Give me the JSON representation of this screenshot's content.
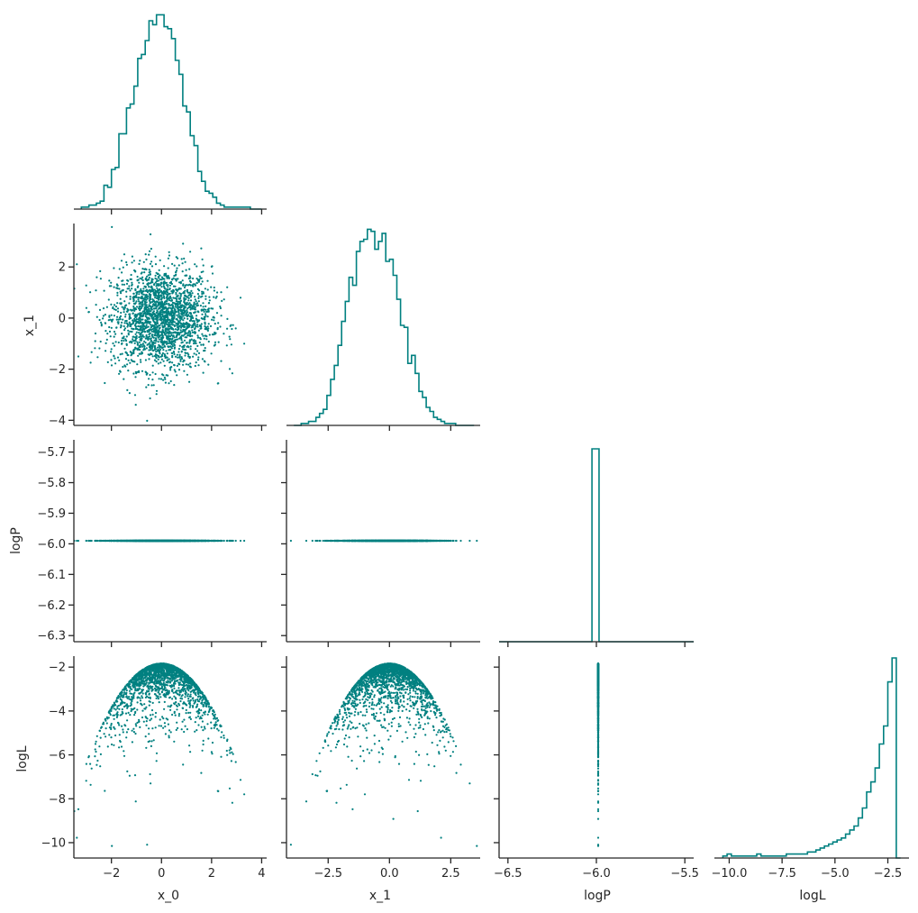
{
  "chart_data": {
    "type": "corner",
    "title": "",
    "variables": [
      "x_0",
      "x_1",
      "logP",
      "logL"
    ],
    "color": "#008080",
    "axis_color": "#262626",
    "grid": false,
    "legend": "none",
    "ranges": {
      "x_0": [
        -3.5,
        4.2
      ],
      "x_1": [
        -4.2,
        3.7
      ],
      "logP": [
        -6.55,
        -5.45
      ],
      "logL": [
        -10.7,
        -1.5
      ]
    },
    "ticks": {
      "x_0": [
        -2,
        0,
        2,
        4
      ],
      "x_1": [
        -2.5,
        0.0,
        2.5
      ],
      "x_1_y": [
        -4,
        -2,
        0,
        2
      ],
      "logP": [
        -6.5,
        -6.0,
        -5.5
      ],
      "logP_y": [
        -6.3,
        -6.2,
        -6.1,
        -6.0,
        -5.9,
        -5.8,
        -5.7
      ],
      "logL": [
        -10.0,
        -7.5,
        -5.0,
        -2.5
      ],
      "logL_y": [
        -10,
        -8,
        -6,
        -4,
        -2
      ]
    },
    "tick_labels": {
      "x_0": [
        "−2",
        "0",
        "2",
        "4"
      ],
      "x_1": [
        "−2.5",
        "0.0",
        "2.5"
      ],
      "x_1_y": [
        "−4",
        "−2",
        "0",
        "2"
      ],
      "logP": [
        "−6.5",
        "−6.0",
        "−5.5"
      ],
      "logP_y": [
        "−6.3",
        "−6.2",
        "−6.1",
        "−6.0",
        "−5.9",
        "−5.8",
        "−5.7"
      ],
      "logL": [
        "−10.0",
        "−7.5",
        "−5.0",
        "−2.5"
      ],
      "logL_y": [
        "−10",
        "−8",
        "−6",
        "−4",
        "−2"
      ]
    },
    "xlabels": [
      "x_0",
      "x_1",
      "logP",
      "logL"
    ],
    "ylabels": [
      "",
      "x_1",
      "logP",
      "logL"
    ],
    "logP_constant": -5.99,
    "logP_plot_range": [
      -6.32,
      -5.66
    ],
    "hist_x_0": {
      "bins": [
        -3.2,
        -3.05,
        -2.9,
        -2.75,
        -2.6,
        -2.45,
        -2.3,
        -2.15,
        -2.0,
        -1.85,
        -1.7,
        -1.55,
        -1.4,
        -1.25,
        -1.1,
        -0.95,
        -0.8,
        -0.65,
        -0.5,
        -0.35,
        -0.2,
        -0.05,
        0.1,
        0.25,
        0.4,
        0.55,
        0.7,
        0.85,
        1.0,
        1.15,
        1.3,
        1.45,
        1.6,
        1.75,
        1.9,
        2.05,
        2.2,
        2.35,
        2.5,
        2.65,
        2.8,
        2.95,
        3.1,
        3.25,
        3.4,
        3.55,
        3.7,
        3.85,
        4.0
      ],
      "counts": [
        1,
        1,
        2,
        2,
        3,
        4,
        12,
        11,
        20,
        21,
        38,
        38,
        51,
        53,
        62,
        76,
        78,
        85,
        95,
        93,
        98,
        98,
        92,
        91,
        86,
        75,
        68,
        52,
        49,
        37,
        32,
        19,
        14,
        9,
        8,
        6,
        3,
        2,
        1,
        1,
        1,
        1,
        1,
        1,
        1,
        0,
        0,
        0
      ],
      "ymax": 100
    },
    "hist_x_1": {
      "bins": [
        -3.9,
        -3.75,
        -3.6,
        -3.45,
        -3.3,
        -3.15,
        -3.0,
        -2.85,
        -2.7,
        -2.55,
        -2.4,
        -2.25,
        -2.1,
        -1.95,
        -1.8,
        -1.65,
        -1.5,
        -1.35,
        -1.2,
        -1.05,
        -0.9,
        -0.75,
        -0.6,
        -0.45,
        -0.3,
        -0.15,
        0.0,
        0.15,
        0.3,
        0.45,
        0.6,
        0.75,
        0.9,
        1.05,
        1.2,
        1.35,
        1.5,
        1.65,
        1.8,
        1.95,
        2.1,
        2.25,
        2.4,
        2.55,
        2.7,
        2.85,
        3.0,
        3.15,
        3.3,
        3.45
      ],
      "counts": [
        0,
        0,
        1,
        1,
        2,
        2,
        4,
        6,
        8,
        15,
        23,
        30,
        40,
        52,
        62,
        74,
        70,
        87,
        92,
        93,
        98,
        97,
        88,
        92,
        96,
        82,
        83,
        75,
        63,
        50,
        49,
        31,
        35,
        26,
        17,
        14,
        9,
        7,
        4,
        3,
        2,
        1,
        1,
        1,
        0,
        0,
        0,
        0,
        0
      ],
      "ymax": 100
    },
    "hist_logP": {
      "bins": [
        -6.025,
        -5.985
      ],
      "counts": [
        1
      ],
      "ymax": 1.04
    },
    "hist_logL": {
      "bins": [
        -10.3,
        -10.1,
        -9.9,
        -9.7,
        -9.5,
        -9.3,
        -9.1,
        -8.9,
        -8.7,
        -8.5,
        -8.3,
        -8.1,
        -7.9,
        -7.7,
        -7.5,
        -7.3,
        -7.1,
        -6.9,
        -6.7,
        -6.5,
        -6.3,
        -6.1,
        -5.9,
        -5.7,
        -5.5,
        -5.3,
        -5.1,
        -4.9,
        -4.7,
        -4.5,
        -4.3,
        -4.1,
        -3.9,
        -3.7,
        -3.5,
        -3.3,
        -3.1,
        -2.9,
        -2.7,
        -2.5,
        -2.3,
        -2.1,
        -1.9
      ],
      "counts": [
        1,
        2,
        1,
        1,
        1,
        1,
        1,
        1,
        2,
        1,
        1,
        1,
        1,
        1,
        1,
        2,
        2,
        2,
        2,
        2,
        3,
        3,
        4,
        5,
        6,
        7,
        8,
        9,
        10,
        12,
        14,
        16,
        20,
        25,
        33,
        38,
        45,
        57,
        66,
        88,
        100,
        0
      ],
      "ymax": 100
    }
  }
}
